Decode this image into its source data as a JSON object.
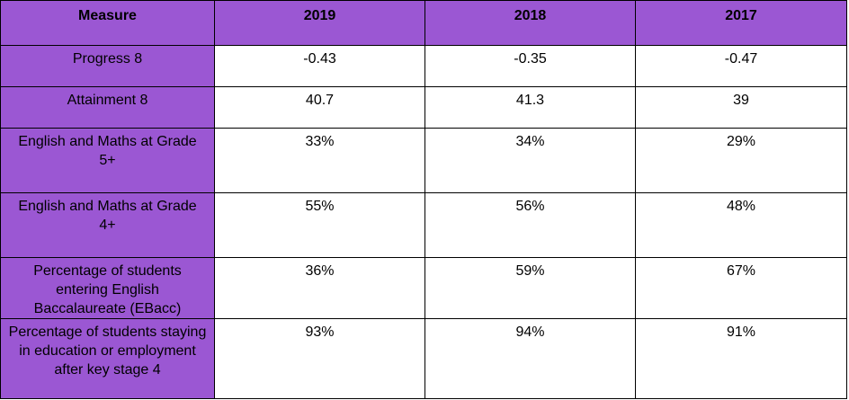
{
  "table": {
    "header": [
      "Measure",
      "2019",
      "2018",
      "2017"
    ],
    "rows": [
      [
        "Progress 8",
        "-0.43",
        "-0.35",
        "-0.47"
      ],
      [
        "Attainment 8",
        "40.7",
        "41.3",
        "39"
      ],
      [
        "English and Maths at Grade 5+",
        "33%",
        "34%",
        "29%"
      ],
      [
        "English and Maths at Grade 4+",
        "55%",
        "56%",
        "48%"
      ],
      [
        "Percentage of students entering English Baccalaureate (EBacc)",
        "36%",
        "59%",
        "67%"
      ],
      [
        "Percentage of students staying in education or employment after key stage 4",
        "93%",
        "94%",
        "91%"
      ]
    ]
  }
}
